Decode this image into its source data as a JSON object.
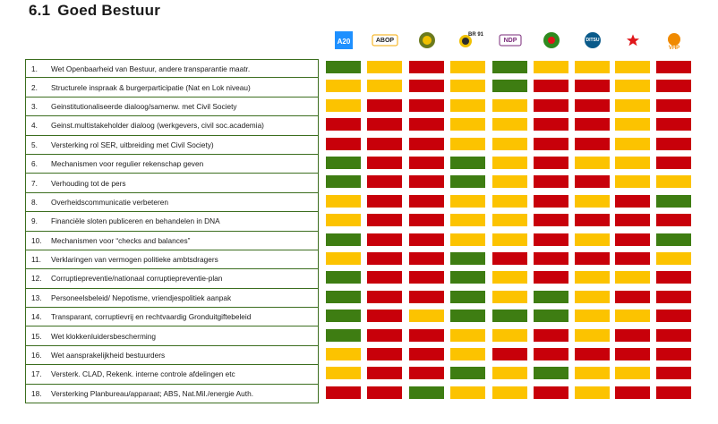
{
  "section": {
    "number": "6.1",
    "title": "Goed Bestuur"
  },
  "parties": [
    {
      "name": "A20",
      "icon": "a20-logo-icon",
      "color": "#1e90ff"
    },
    {
      "name": "ABOP",
      "icon": "abop-logo-icon",
      "color": "#f5a800"
    },
    {
      "name": "BEP",
      "icon": "bep-logo-icon",
      "color": "#6b7a1e"
    },
    {
      "name": "BR 91",
      "icon": "br91-logo-icon",
      "color": "#2d2d2d"
    },
    {
      "name": "NDP",
      "icon": "ndp-logo-icon",
      "color": "#7a2a7a"
    },
    {
      "name": "NPS",
      "icon": "nps-logo-icon",
      "color": "#2e8b1f"
    },
    {
      "name": "DITSU",
      "icon": "ditsu-logo-icon",
      "color": "#0a5a8a"
    },
    {
      "name": "",
      "icon": "red-star-icon",
      "color": "#e0161a"
    },
    {
      "name": "VHP",
      "icon": "vhp-logo-icon",
      "color": "#f08a00"
    }
  ],
  "colors": {
    "green": "#3e7d12",
    "yellow": "#fcc300",
    "red": "#c8000a"
  },
  "rows": [
    {
      "num": "1.",
      "label": "Wet Openbaarheid van Bestuur, andere transparantie maatr.",
      "ratings": [
        "G",
        "Y",
        "R",
        "Y",
        "G",
        "Y",
        "Y",
        "Y",
        "R"
      ]
    },
    {
      "num": "2.",
      "label": "Structurele inspraak & burgerparticipatie (Nat en Lok niveau)",
      "ratings": [
        "Y",
        "Y",
        "R",
        "Y",
        "G",
        "R",
        "R",
        "Y",
        "R"
      ]
    },
    {
      "num": "3.",
      "label": "Geinstitutionaliseerde dialoog/samenw. met Civil Society",
      "ratings": [
        "Y",
        "R",
        "R",
        "Y",
        "Y",
        "R",
        "R",
        "Y",
        "R"
      ]
    },
    {
      "num": "4.",
      "label": "Geinst.multistakeholder dialoog (werkgevers, civil soc.academia)",
      "ratings": [
        "R",
        "R",
        "R",
        "Y",
        "Y",
        "R",
        "R",
        "Y",
        "R"
      ]
    },
    {
      "num": "5.",
      "label": "Versterking rol SER, uitbreiding met Civil Society)",
      "ratings": [
        "R",
        "R",
        "R",
        "Y",
        "Y",
        "R",
        "R",
        "Y",
        "R"
      ]
    },
    {
      "num": "6.",
      "label": "Mechanismen voor regulier rekenschap geven",
      "ratings": [
        "G",
        "R",
        "R",
        "G",
        "Y",
        "R",
        "Y",
        "Y",
        "R"
      ]
    },
    {
      "num": "7.",
      "label": "Verhouding tot de pers",
      "ratings": [
        "G",
        "R",
        "R",
        "G",
        "Y",
        "R",
        "R",
        "Y",
        "Y"
      ]
    },
    {
      "num": "8.",
      "label": "Overheidscommunicatie verbeteren",
      "ratings": [
        "Y",
        "R",
        "R",
        "Y",
        "Y",
        "R",
        "Y",
        "R",
        "G"
      ]
    },
    {
      "num": "9.",
      "label": "Financiële sloten publiceren en behandelen in DNA",
      "ratings": [
        "Y",
        "R",
        "R",
        "Y",
        "Y",
        "R",
        "R",
        "R",
        "R"
      ]
    },
    {
      "num": "10.",
      "label": "Mechanismen voor “checks and balances”",
      "ratings": [
        "G",
        "R",
        "R",
        "Y",
        "Y",
        "R",
        "Y",
        "R",
        "G"
      ]
    },
    {
      "num": "11.",
      "label": "Verklaringen van vermogen politieke ambtsdragers",
      "ratings": [
        "Y",
        "R",
        "R",
        "G",
        "R",
        "R",
        "R",
        "R",
        "Y"
      ]
    },
    {
      "num": "12.",
      "label": "Corruptiepreventie/nationaal corruptiepreventie-plan",
      "ratings": [
        "G",
        "R",
        "R",
        "G",
        "Y",
        "R",
        "Y",
        "Y",
        "R"
      ]
    },
    {
      "num": "13.",
      "label": "Personeelsbeleid/ Nepotisme, vriendjespolitiek aanpak",
      "ratings": [
        "G",
        "R",
        "R",
        "G",
        "Y",
        "G",
        "Y",
        "R",
        "R"
      ]
    },
    {
      "num": "14.",
      "label": "Transparant, corruptievrij en rechtvaardig Gronduitgiftebeleid",
      "ratings": [
        "G",
        "R",
        "Y",
        "G",
        "G",
        "G",
        "Y",
        "Y",
        "R"
      ]
    },
    {
      "num": "15.",
      "label": "Wet klokkenluidersbescherming",
      "ratings": [
        "G",
        "R",
        "R",
        "Y",
        "Y",
        "R",
        "Y",
        "R",
        "R"
      ]
    },
    {
      "num": "16.",
      "label": "Wet aansprakelijkheid bestuurders",
      "ratings": [
        "Y",
        "R",
        "R",
        "Y",
        "R",
        "R",
        "R",
        "R",
        "R"
      ]
    },
    {
      "num": "17.",
      "label": "Versterk. CLAD, Rekenk. interne controle afdelingen etc",
      "ratings": [
        "Y",
        "R",
        "R",
        "G",
        "Y",
        "G",
        "Y",
        "Y",
        "R"
      ]
    },
    {
      "num": "18.",
      "label": "Versterking Planbureau/apparaat; ABS, Nat.Mil./energie Auth.",
      "ratings": [
        "R",
        "R",
        "G",
        "Y",
        "Y",
        "R",
        "Y",
        "R",
        "R"
      ]
    }
  ]
}
